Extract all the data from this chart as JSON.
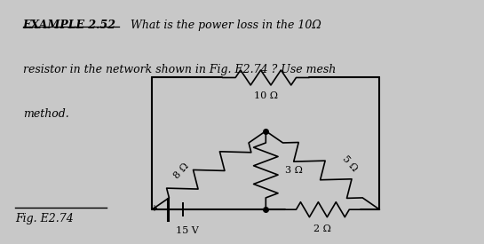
{
  "title_label": "EXAMPLE 2.52",
  "title_rest": "  What is the power loss in the 10Ω",
  "line2": "resistor in the network shown in Fig. E2.74 ? Use mesh",
  "line3": "method.",
  "fig_label": "Fig. E2.74",
  "bg_color": "#c8c8c8",
  "text_color": "#000000",
  "r10_label": "10 Ω",
  "r8_label": "8 Ω",
  "r3_label": "3 Ω",
  "r5_label": "5 Ω",
  "r2_label": "2 Ω",
  "v_label": "15 V"
}
